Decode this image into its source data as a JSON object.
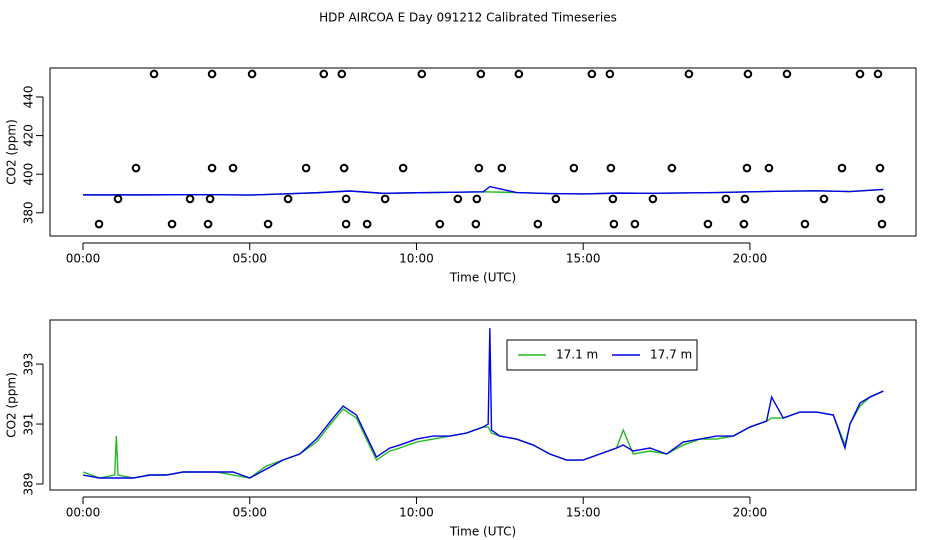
{
  "title": "HDP AIRCOA E  Day 091212  Calibrated Timeseries",
  "chart_data": [
    {
      "type": "line",
      "xlabel": "Time (UTC)",
      "ylabel": "CO2 (ppm)",
      "xlim": [
        -0.99,
        24.98
      ],
      "xticks": [
        {
          "value": 0,
          "label": "00:00"
        },
        {
          "value": 5,
          "label": "05:00"
        },
        {
          "value": 10,
          "label": "10:00"
        },
        {
          "value": 15,
          "label": "15:00"
        },
        {
          "value": 20,
          "label": "20:00"
        }
      ],
      "ylim": [
        368,
        455
      ],
      "yticks": [
        380,
        400,
        420,
        440
      ],
      "x": [
        0,
        1,
        2,
        3,
        4,
        5,
        6,
        7,
        8,
        9,
        10,
        11,
        12,
        12.2,
        13,
        14,
        15,
        16,
        17,
        18,
        19,
        20,
        21,
        22,
        23,
        24
      ],
      "series": [
        {
          "color": "#22bb22",
          "values": [
            389.3,
            389.3,
            389.3,
            389.4,
            389.4,
            389.2,
            389.8,
            390.4,
            391.3,
            390.1,
            390.4,
            390.6,
            390.9,
            390.8,
            390.5,
            390.0,
            389.8,
            390.2,
            390.1,
            390.3,
            390.5,
            390.9,
            391.2,
            391.4,
            391.0,
            392.1
          ]
        },
        {
          "color": "#0000ee",
          "values": [
            389.3,
            389.3,
            389.3,
            389.4,
            389.4,
            389.2,
            389.8,
            390.4,
            391.3,
            390.1,
            390.4,
            390.6,
            390.9,
            393.6,
            390.5,
            390.0,
            389.8,
            390.2,
            390.1,
            390.3,
            390.5,
            390.9,
            391.2,
            391.4,
            391.0,
            392.1
          ]
        }
      ],
      "scatter": {
        "color": "#000000",
        "x": [
          2.13,
          3.87,
          5.07,
          7.22,
          7.76,
          10.16,
          11.93,
          13.07,
          15.26,
          15.8,
          18.17,
          19.94,
          21.11,
          23.3,
          23.84,
          1.59,
          3.87,
          4.5,
          6.69,
          7.83,
          9.6,
          11.87,
          12.56,
          14.72,
          15.83,
          17.66,
          19.91,
          20.57,
          22.76,
          23.9,
          1.05,
          3.21,
          3.81,
          6.15,
          7.89,
          9.06,
          11.24,
          11.81,
          14.18,
          15.89,
          17.09,
          19.28,
          19.85,
          22.22,
          23.93,
          0.48,
          2.67,
          3.75,
          5.55,
          7.89,
          8.52,
          10.7,
          11.78,
          13.64,
          15.92,
          16.55,
          18.74,
          19.82,
          21.65,
          23.96
        ],
        "values": [
          451.9,
          451.9,
          451.9,
          451.9,
          451.9,
          451.9,
          451.9,
          451.9,
          451.9,
          451.9,
          451.9,
          451.9,
          451.9,
          451.9,
          451.9,
          403.2,
          403.2,
          403.2,
          403.2,
          403.2,
          403.2,
          403.2,
          403.2,
          403.2,
          403.2,
          403.2,
          403.2,
          403.2,
          403.2,
          403.2,
          387.2,
          387.2,
          387.2,
          387.2,
          387.2,
          387.2,
          387.2,
          387.2,
          387.2,
          387.2,
          387.2,
          387.2,
          387.2,
          387.2,
          387.2,
          374.2,
          374.2,
          374.2,
          374.2,
          374.2,
          374.2,
          374.2,
          374.2,
          374.2,
          374.2,
          374.2,
          374.2,
          374.2,
          374.2,
          374.2
        ]
      }
    },
    {
      "type": "line",
      "xlabel": "Time (UTC)",
      "ylabel": "CO2 (ppm)",
      "legend": "top",
      "xlim": [
        -0.99,
        24.98
      ],
      "xticks": [
        {
          "value": 0,
          "label": "00:00"
        },
        {
          "value": 5,
          "label": "05:00"
        },
        {
          "value": 10,
          "label": "10:00"
        },
        {
          "value": 15,
          "label": "15:00"
        },
        {
          "value": 20,
          "label": "20:00"
        }
      ],
      "ylim": [
        388.8,
        394.47
      ],
      "yticks": [
        389,
        391,
        393
      ],
      "x": [
        0,
        0.5,
        0.95,
        1.0,
        1.05,
        1.5,
        2,
        2.5,
        3,
        3.5,
        4,
        4.5,
        5,
        5.5,
        6,
        6.5,
        7,
        7.5,
        7.8,
        8.2,
        8.5,
        8.8,
        9.2,
        9.5,
        10,
        10.5,
        11,
        11.5,
        12,
        12.15,
        12.2,
        12.25,
        12.5,
        13,
        13.5,
        14,
        14.5,
        15,
        15.5,
        16,
        16.2,
        16.5,
        17,
        17.5,
        18,
        18.5,
        19,
        19.5,
        20,
        20.5,
        20.65,
        21,
        21.5,
        22,
        22.5,
        22.85,
        23,
        23.3,
        23.6,
        24
      ],
      "series": [
        {
          "name": "17.1 m",
          "color": "#22bb22",
          "values": [
            389.4,
            389.2,
            389.3,
            390.6,
            389.3,
            389.2,
            389.3,
            389.3,
            389.4,
            389.4,
            389.4,
            389.3,
            389.2,
            389.6,
            389.8,
            390.0,
            390.4,
            391.1,
            391.5,
            391.2,
            390.5,
            389.8,
            390.1,
            390.2,
            390.4,
            390.5,
            390.6,
            390.7,
            390.9,
            390.9,
            390.8,
            390.7,
            390.6,
            390.5,
            390.3,
            390.0,
            389.8,
            389.8,
            390.0,
            390.2,
            390.8,
            390.0,
            390.1,
            390.0,
            390.3,
            390.5,
            390.5,
            390.6,
            390.9,
            391.1,
            391.2,
            391.2,
            391.4,
            391.4,
            391.3,
            390.3,
            391.0,
            391.6,
            391.9,
            392.1
          ]
        },
        {
          "name": "17.7 m",
          "color": "#0000ee",
          "values": [
            389.3,
            389.2,
            389.2,
            389.2,
            389.2,
            389.2,
            389.3,
            389.3,
            389.4,
            389.4,
            389.4,
            389.4,
            389.2,
            389.5,
            389.8,
            390.0,
            390.5,
            391.2,
            391.6,
            391.3,
            390.6,
            389.9,
            390.2,
            390.3,
            390.5,
            390.6,
            390.6,
            390.7,
            390.9,
            391.0,
            394.2,
            390.8,
            390.6,
            390.5,
            390.3,
            390.0,
            389.8,
            389.8,
            390.0,
            390.2,
            390.3,
            390.1,
            390.2,
            390.0,
            390.4,
            390.5,
            390.6,
            390.6,
            390.9,
            391.1,
            391.9,
            391.2,
            391.4,
            391.4,
            391.3,
            390.2,
            391.0,
            391.7,
            391.9,
            392.1
          ]
        }
      ]
    }
  ]
}
